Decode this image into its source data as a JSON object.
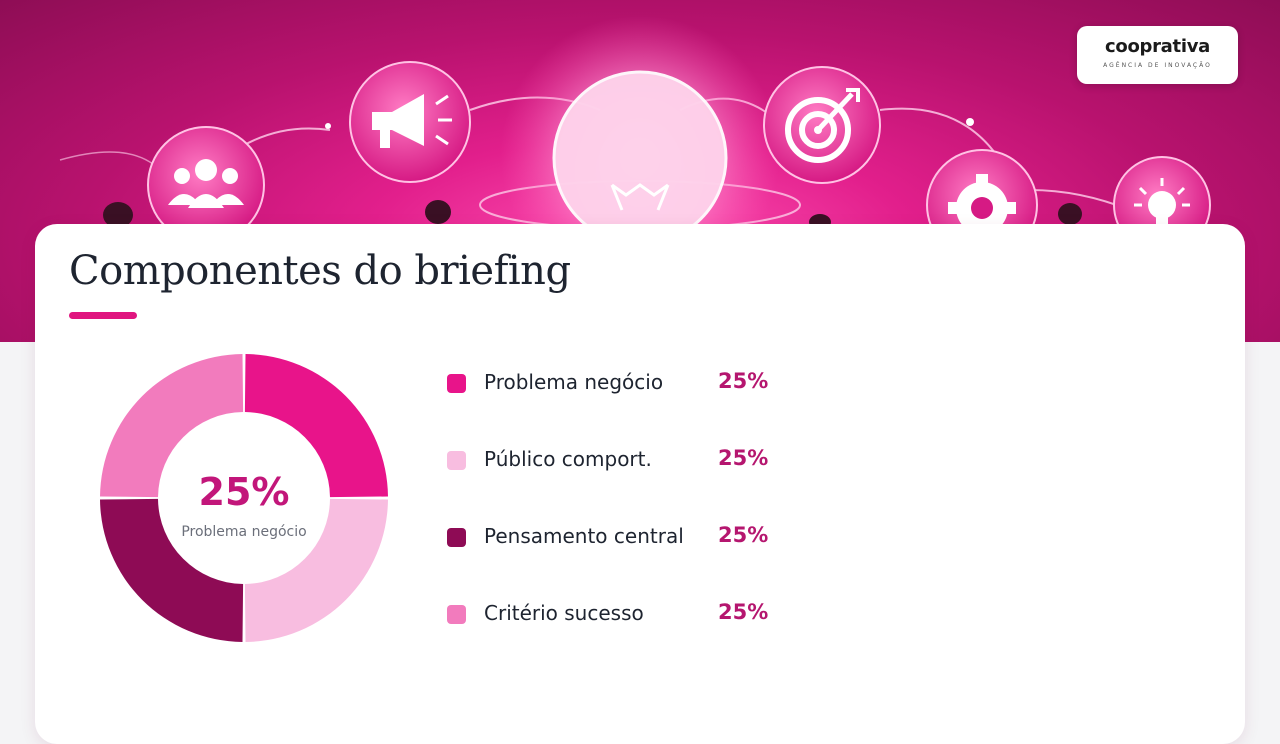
{
  "brand": {
    "name": "cooprativa",
    "tagline": "AGÊNCIA DE INOVAÇÃO"
  },
  "page": {
    "title": "Componentes do briefing"
  },
  "chart_data": {
    "type": "pie",
    "style": "donut",
    "center_value": "25%",
    "center_label": "Problema negócio",
    "slices": [
      {
        "label": "Problema negócio",
        "value": 25,
        "value_label": "25%",
        "color": "#e8148a"
      },
      {
        "label": "Público comport.",
        "value": 25,
        "value_label": "25%",
        "color": "#f8bde0"
      },
      {
        "label": "Pensamento central",
        "value": 25,
        "value_label": "25%",
        "color": "#8e0b55"
      },
      {
        "label": "Critério sucesso",
        "value": 25,
        "value_label": "25%",
        "color": "#f27bbd"
      }
    ]
  },
  "colors": {
    "accent": "#e0157f",
    "value_text": "#b5166f",
    "hero_magenta": "#c2167a",
    "title_text": "#1e2430"
  },
  "icons": [
    "team-icon",
    "megaphone-icon",
    "lightbulb-icon",
    "target-icon",
    "gear-icon",
    "small-lightbulb-icon"
  ]
}
